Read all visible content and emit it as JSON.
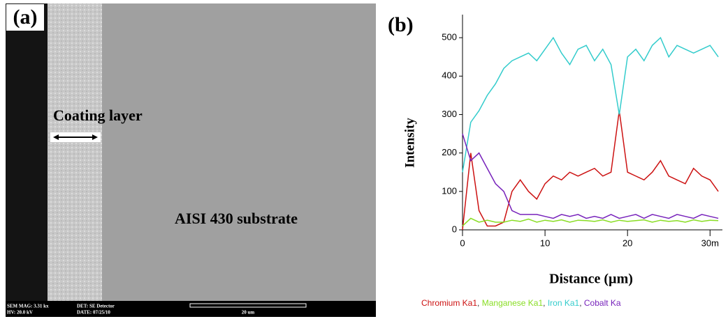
{
  "panel_a": {
    "label": "(a)",
    "coating_label": "Coating layer",
    "substrate_label": "AISI 430 substrate",
    "info": [
      "SEM MAG: 3.31 kx",
      "DET: SE Detector",
      "HV: 20.0 kV",
      "DATE: 07/25/10",
      "20 um"
    ]
  },
  "chart_data": {
    "type": "line",
    "panel_label": "(b)",
    "x_label": "Distance (µm)",
    "y_label": "Intensity",
    "x": [
      0,
      1,
      2,
      3,
      4,
      5,
      6,
      7,
      8,
      9,
      10,
      11,
      12,
      13,
      14,
      15,
      16,
      17,
      18,
      19,
      20,
      21,
      22,
      23,
      24,
      25,
      26,
      27,
      28,
      29,
      30,
      31
    ],
    "series": [
      {
        "name": "Chromium Ka1",
        "color": "#cc1111",
        "values": [
          0,
          200,
          50,
          10,
          10,
          20,
          100,
          130,
          100,
          80,
          120,
          140,
          130,
          150,
          140,
          150,
          160,
          140,
          150,
          310,
          150,
          140,
          130,
          150,
          180,
          140,
          130,
          120,
          160,
          140,
          130,
          100
        ]
      },
      {
        "name": "Manganese Ka1",
        "color": "#88dd22",
        "values": [
          10,
          30,
          20,
          25,
          20,
          20,
          25,
          22,
          28,
          20,
          25,
          22,
          26,
          20,
          25,
          24,
          22,
          26,
          20,
          25,
          22,
          24,
          26,
          20,
          25,
          22,
          24,
          20,
          26,
          22,
          25,
          24
        ]
      },
      {
        "name": "Iron Ka1",
        "color": "#33cccc",
        "values": [
          150,
          280,
          310,
          350,
          380,
          420,
          440,
          450,
          460,
          440,
          470,
          500,
          460,
          430,
          470,
          480,
          440,
          470,
          430,
          300,
          450,
          470,
          440,
          480,
          500,
          450,
          480,
          470,
          460,
          470,
          480,
          450
        ]
      },
      {
        "name": "Cobalt Ka",
        "color": "#7722bb",
        "values": [
          250,
          180,
          200,
          160,
          120,
          100,
          50,
          40,
          40,
          40,
          35,
          30,
          40,
          35,
          40,
          30,
          35,
          30,
          40,
          30,
          35,
          40,
          30,
          40,
          35,
          30,
          40,
          35,
          30,
          40,
          35,
          30
        ]
      }
    ],
    "legend_separator": ",",
    "xlim": [
      0,
      31.5
    ],
    "ylim": [
      0,
      560
    ],
    "xticks": [
      0,
      10,
      20,
      {
        "value": 30,
        "label": "30m"
      }
    ],
    "yticks": [
      0,
      100,
      200,
      300,
      400,
      500
    ]
  }
}
